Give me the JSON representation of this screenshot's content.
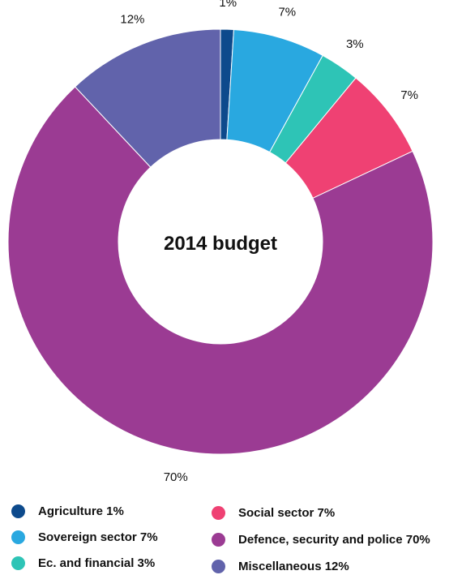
{
  "chart_data": {
    "type": "pie",
    "donut": true,
    "center_title": "2014 budget",
    "start_angle_deg": 0,
    "direction": "clockwise",
    "slices": [
      {
        "name": "Agriculture",
        "value": 1,
        "label": "1%",
        "legend": "Agriculture 1%",
        "color": "#0d4a8c"
      },
      {
        "name": "Sovereign sector",
        "value": 7,
        "label": "7%",
        "legend": "Sovereign sector 7%",
        "color": "#29a8e0"
      },
      {
        "name": "Ec. and financial",
        "value": 3,
        "label": "3%",
        "legend": "Ec. and financial 3%",
        "color": "#2ec4b6"
      },
      {
        "name": "Social sector",
        "value": 7,
        "label": "7%",
        "legend": "Social sector 7%",
        "color": "#ef4173"
      },
      {
        "name": "Defence, security and police",
        "value": 70,
        "label": "70%",
        "legend": "Defence, security and police 70%",
        "color": "#9b3b93"
      },
      {
        "name": "Miscellaneous",
        "value": 12,
        "label": "12%",
        "legend": "Miscellaneous 12%",
        "color": "#6163ab"
      }
    ],
    "legend_placement": "bottom"
  }
}
